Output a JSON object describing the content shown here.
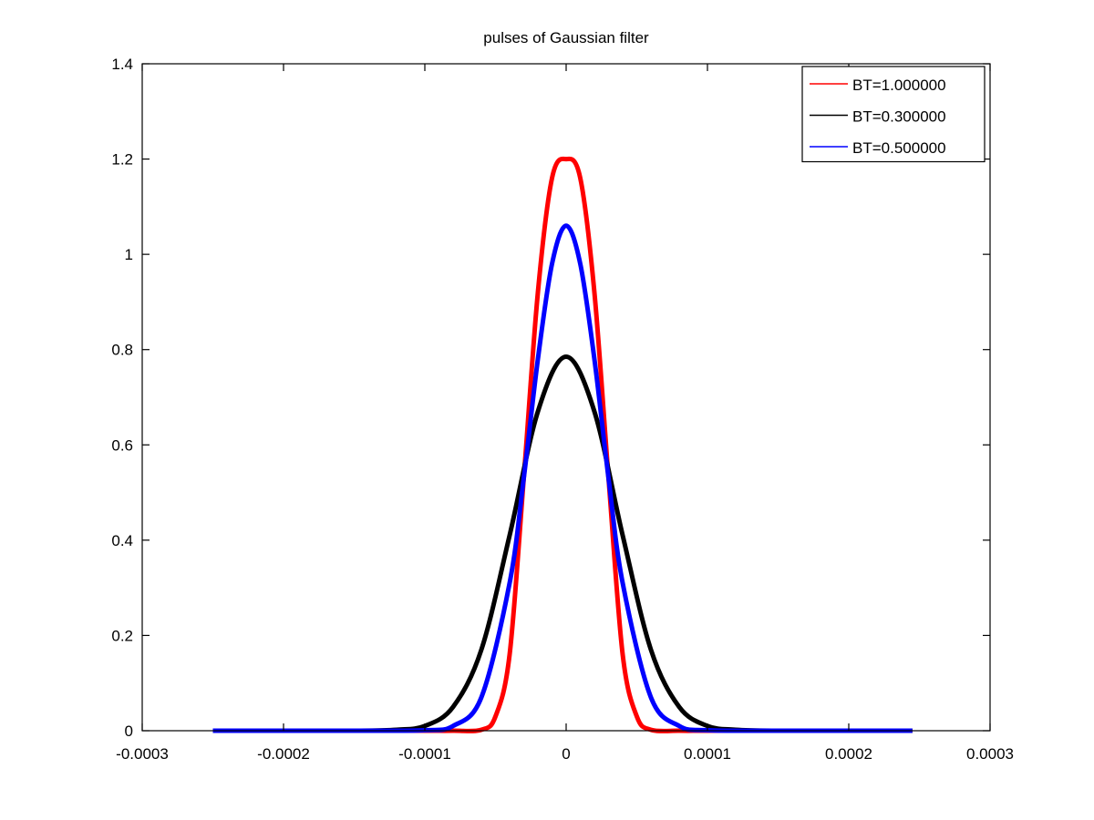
{
  "chart_data": {
    "type": "line",
    "title": "pulses of Gaussian filter",
    "xlabel": "",
    "ylabel": "",
    "xlim": [
      -0.0003,
      0.0003
    ],
    "ylim": [
      0,
      1.4
    ],
    "x_ticks": [
      -0.0003,
      -0.0002,
      -0.0001,
      0,
      0.0001,
      0.0002,
      0.0003
    ],
    "x_tick_labels": [
      "-0.0003",
      "-0.0002",
      "-0.0001",
      "0",
      "0.0001",
      "0.0002",
      "0.0003"
    ],
    "y_ticks": [
      0,
      0.2,
      0.4,
      0.6,
      0.8,
      1,
      1.2,
      1.4
    ],
    "y_tick_labels": [
      "0",
      "0.2",
      "0.4",
      "0.6",
      "0.8",
      "1",
      "1.2",
      "1.4"
    ],
    "grid": false,
    "legend_position": "top-right",
    "series": [
      {
        "name": "BT=1.000000",
        "color": "#ff0000",
        "x": [
          -0.00025,
          -0.0002,
          -0.00015,
          -0.0001,
          -8e-05,
          -6e-05,
          -5e-05,
          -4e-05,
          -3e-05,
          -2e-05,
          -1e-05,
          0,
          1e-05,
          2e-05,
          3e-05,
          4e-05,
          5e-05,
          6e-05,
          8e-05,
          0.0001,
          0.00015,
          0.0002,
          0.000245
        ],
        "y": [
          0,
          0,
          0,
          0,
          0,
          0.002,
          0.03,
          0.16,
          0.53,
          0.92,
          1.16,
          1.2,
          1.16,
          0.92,
          0.53,
          0.16,
          0.03,
          0.002,
          0,
          0,
          0,
          0,
          0
        ]
      },
      {
        "name": "BT=0.300000",
        "color": "#000000",
        "x": [
          -0.00025,
          -0.0002,
          -0.00015,
          -0.00012,
          -0.0001,
          -8e-05,
          -6e-05,
          -4e-05,
          -2e-05,
          0,
          2e-05,
          4e-05,
          6e-05,
          8e-05,
          0.0001,
          0.00012,
          0.00015,
          0.0002,
          0.000245
        ],
        "y": [
          0,
          0,
          0,
          0.002,
          0.01,
          0.05,
          0.17,
          0.41,
          0.67,
          0.785,
          0.67,
          0.41,
          0.17,
          0.05,
          0.01,
          0.002,
          0,
          0,
          0
        ]
      },
      {
        "name": "BT=0.500000",
        "color": "#0000ff",
        "x": [
          -0.00025,
          -0.0002,
          -0.00015,
          -0.0001,
          -8e-05,
          -6e-05,
          -4e-05,
          -3e-05,
          -2e-05,
          -1e-05,
          0,
          1e-05,
          2e-05,
          3e-05,
          4e-05,
          6e-05,
          8e-05,
          0.0001,
          0.00015,
          0.0002,
          0.000245
        ],
        "y": [
          0,
          0,
          0,
          0.001,
          0.01,
          0.07,
          0.31,
          0.53,
          0.78,
          0.98,
          1.06,
          0.98,
          0.78,
          0.53,
          0.31,
          0.07,
          0.01,
          0.001,
          0,
          0,
          0
        ]
      }
    ]
  }
}
